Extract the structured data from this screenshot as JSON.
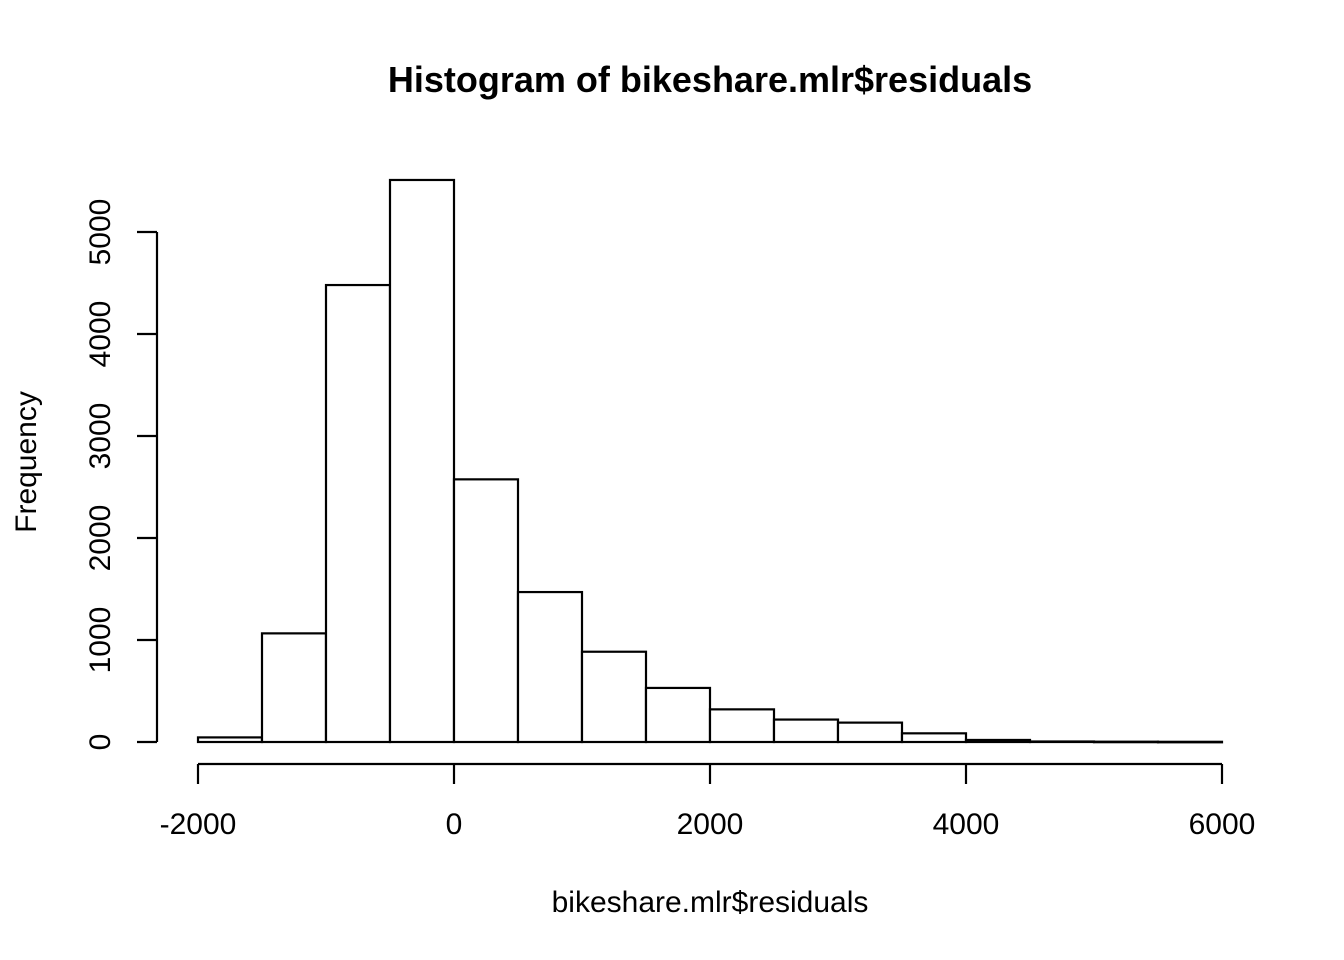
{
  "chart_data": {
    "type": "bar",
    "title": "Histogram of bikeshare.mlr$residuals",
    "xlabel": "bikeshare.mlr$residuals",
    "ylabel": "Frequency",
    "xlim": [
      -2000,
      6000
    ],
    "ylim": [
      0,
      5500
    ],
    "x_ticks": [
      "-2000",
      "0",
      "2000",
      "4000",
      "6000"
    ],
    "y_ticks": [
      "0",
      "1000",
      "2000",
      "3000",
      "4000",
      "5000"
    ],
    "bin_width": 500,
    "bins": [
      {
        "start": -2000,
        "end": -1500,
        "count": 45
      },
      {
        "start": -1500,
        "end": -1000,
        "count": 1065
      },
      {
        "start": -1000,
        "end": -500,
        "count": 4480
      },
      {
        "start": -500,
        "end": 0,
        "count": 5510
      },
      {
        "start": 0,
        "end": 500,
        "count": 2575
      },
      {
        "start": 500,
        "end": 1000,
        "count": 1470
      },
      {
        "start": 1000,
        "end": 1500,
        "count": 885
      },
      {
        "start": 1500,
        "end": 2000,
        "count": 530
      },
      {
        "start": 2000,
        "end": 2500,
        "count": 320
      },
      {
        "start": 2500,
        "end": 3000,
        "count": 220
      },
      {
        "start": 3000,
        "end": 3500,
        "count": 190
      },
      {
        "start": 3500,
        "end": 4000,
        "count": 85
      },
      {
        "start": 4000,
        "end": 4500,
        "count": 20
      },
      {
        "start": 4500,
        "end": 5000,
        "count": 5
      },
      {
        "start": 5000,
        "end": 5500,
        "count": 3
      },
      {
        "start": 5500,
        "end": 6000,
        "count": 2
      }
    ],
    "grid": false,
    "legend": "none",
    "colors": {
      "bar_fill": "#ffffff",
      "bar_stroke": "#000000"
    }
  }
}
